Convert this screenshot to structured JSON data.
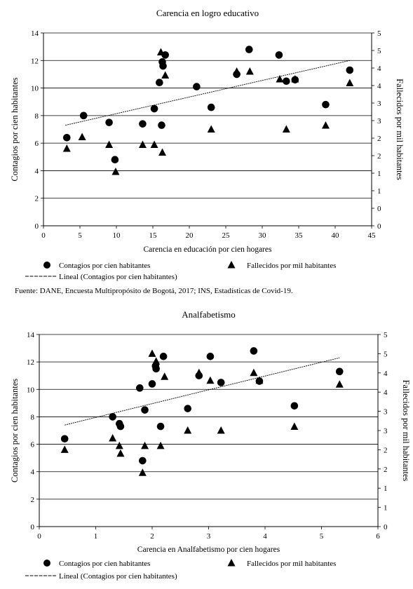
{
  "source": "Fuente: DANE, Encuesta Multipropósito de Bogotá, 2017; INS, Estadísticas de Covid-19.",
  "chart_data": [
    {
      "type": "scatter",
      "title": "Carencia en logro educativo",
      "xlabel": "Carencia en  educación  por cien hogares",
      "ylabel": "Contagios por cien habitantes",
      "y2label": "Fallecidos por mil habitantes",
      "xlim": [
        0,
        45
      ],
      "ylim": [
        0,
        14
      ],
      "y2lim": [
        0,
        5
      ],
      "xticks": [
        "0",
        "5",
        "10",
        "15",
        "20",
        "25",
        "30",
        "35",
        "40",
        "45"
      ],
      "yticks": [
        "0",
        "2",
        "4",
        "6",
        "8",
        "10",
        "12",
        "14"
      ],
      "y2ticks": [
        "0",
        "0",
        "1",
        "1",
        "2",
        "2",
        "3",
        "3",
        "4",
        "4",
        "5",
        "5"
      ],
      "grid": "horizontal",
      "legend": {
        "contagios": "Contagios por cien habitantes",
        "fallecidos": "Fallecidos por mil habitantes",
        "lineal": "Lineal (Contagios por cien habitantes)"
      },
      "series": [
        {
          "name": "Contagios por cien habitantes",
          "axis": "left",
          "marker": "circle",
          "points": [
            [
              3.2,
              6.4
            ],
            [
              5.5,
              8.0
            ],
            [
              9.0,
              7.5
            ],
            [
              9.8,
              4.8
            ],
            [
              13.6,
              7.4
            ],
            [
              15.2,
              8.5
            ],
            [
              15.9,
              10.4
            ],
            [
              16.2,
              7.3
            ],
            [
              16.3,
              11.9
            ],
            [
              16.4,
              11.6
            ],
            [
              16.7,
              12.4
            ],
            [
              21.0,
              10.1
            ],
            [
              23.0,
              8.6
            ],
            [
              26.5,
              11.0
            ],
            [
              28.2,
              12.8
            ],
            [
              32.3,
              12.4
            ],
            [
              33.3,
              10.5
            ],
            [
              34.5,
              10.6
            ],
            [
              38.7,
              8.8
            ],
            [
              42.0,
              11.3
            ]
          ]
        },
        {
          "name": "Fallecidos por mil habitantes",
          "axis": "right",
          "marker": "triangle",
          "points": [
            [
              3.2,
              2.0
            ],
            [
              5.3,
              2.3
            ],
            [
              9.0,
              2.1
            ],
            [
              9.9,
              1.4
            ],
            [
              13.6,
              2.1
            ],
            [
              15.2,
              2.1
            ],
            [
              16.1,
              4.5
            ],
            [
              16.3,
              1.9
            ],
            [
              16.7,
              3.9
            ],
            [
              23.0,
              2.5
            ],
            [
              26.5,
              4.0
            ],
            [
              28.3,
              4.0
            ],
            [
              32.4,
              3.8
            ],
            [
              33.3,
              2.5
            ],
            [
              34.5,
              3.8
            ],
            [
              38.7,
              2.6
            ],
            [
              42.0,
              3.7
            ]
          ]
        },
        {
          "name": "Lineal (Contagios por cien habitantes)",
          "axis": "left",
          "marker": "line",
          "points": [
            [
              3.0,
              7.3
            ],
            [
              42.0,
              12.0
            ]
          ]
        }
      ]
    },
    {
      "type": "scatter",
      "title": "Analfabetismo",
      "xlabel": "Carencia en  Analfabetismo  por cien hogares",
      "ylabel": "Contagios por cien habitantes",
      "y2label": "Fallecidos por mil habitantes",
      "xlim": [
        0,
        6
      ],
      "ylim": [
        0,
        14
      ],
      "y2lim": [
        0,
        5
      ],
      "xticks": [
        "0",
        "1",
        "2",
        "3",
        "4",
        "5",
        "6"
      ],
      "yticks": [
        "0",
        "2",
        "4",
        "6",
        "8",
        "10",
        "12",
        "14"
      ],
      "y2ticks": [
        "0",
        "1",
        "1",
        "2",
        "2",
        "3",
        "3",
        "4",
        "4",
        "5",
        "5"
      ],
      "grid": "horizontal",
      "legend": {
        "contagios": "Contagios por cien habitantes",
        "fallecidos": "Fallecidos por mil habitantes",
        "lineal": "Lineal (Contagios por cien habitantes)"
      },
      "series": [
        {
          "name": "Contagios por cien habitantes",
          "axis": "left",
          "marker": "circle",
          "points": [
            [
              0.45,
              6.4
            ],
            [
              1.3,
              8.0
            ],
            [
              1.42,
              7.5
            ],
            [
              1.44,
              7.3
            ],
            [
              1.78,
              10.1
            ],
            [
              1.83,
              4.8
            ],
            [
              1.87,
              8.5
            ],
            [
              2.0,
              10.4
            ],
            [
              2.06,
              11.7
            ],
            [
              2.07,
              11.5
            ],
            [
              2.15,
              7.3
            ],
            [
              2.2,
              12.4
            ],
            [
              2.63,
              8.6
            ],
            [
              2.83,
              11.0
            ],
            [
              3.03,
              12.4
            ],
            [
              3.22,
              10.5
            ],
            [
              3.8,
              12.8
            ],
            [
              3.9,
              10.6
            ],
            [
              4.52,
              8.8
            ],
            [
              5.32,
              11.3
            ]
          ]
        },
        {
          "name": "Fallecidos por mil habitantes",
          "axis": "right",
          "marker": "triangle",
          "points": [
            [
              0.45,
              2.0
            ],
            [
              1.3,
              2.3
            ],
            [
              1.42,
              2.1
            ],
            [
              1.44,
              1.9
            ],
            [
              1.83,
              1.4
            ],
            [
              1.87,
              2.1
            ],
            [
              2.0,
              4.5
            ],
            [
              2.07,
              4.3
            ],
            [
              2.15,
              2.1
            ],
            [
              2.22,
              3.9
            ],
            [
              2.63,
              2.5
            ],
            [
              2.83,
              4.0
            ],
            [
              3.03,
              3.8
            ],
            [
              3.22,
              2.5
            ],
            [
              3.8,
              4.0
            ],
            [
              3.9,
              3.8
            ],
            [
              4.52,
              2.6
            ],
            [
              5.32,
              3.7
            ]
          ]
        },
        {
          "name": "Lineal (Contagios por cien habitantes)",
          "axis": "left",
          "marker": "line",
          "points": [
            [
              0.45,
              7.4
            ],
            [
              5.32,
              12.3
            ]
          ]
        }
      ]
    }
  ]
}
